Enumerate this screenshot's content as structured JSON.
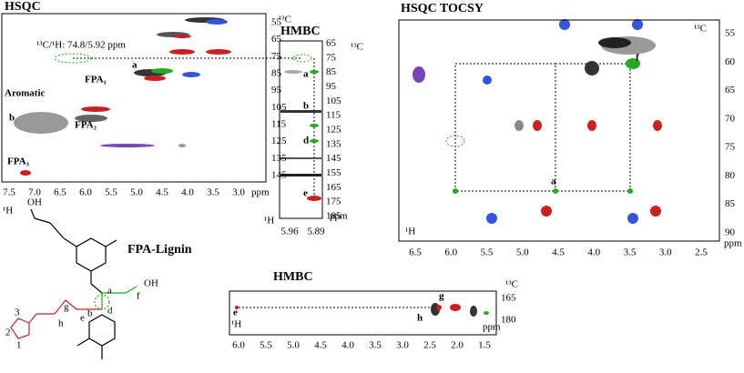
{
  "panels": [
    {
      "title": "HSQC",
      "y_axis_label": "¹³C",
      "x_axis_label": "¹H",
      "x_unit": "ppm",
      "yticks": [
        55,
        65,
        75,
        85,
        95,
        105,
        115,
        125,
        135,
        145
      ],
      "xticks": [
        "7.5",
        "7.0",
        "6.5",
        "6.0",
        "5.5",
        "5.0",
        "4.5",
        "4.0",
        "3.5",
        "3.0"
      ],
      "annotations": [
        "¹³C/¹H: 74.8/5.92 ppm",
        "a",
        "Aromatic",
        "FPA₁",
        "b",
        "FPA₂",
        "FPA₃"
      ]
    },
    {
      "title": "HMBC",
      "y_axis_label": "¹³C",
      "x_axis_label": "¹H",
      "x_unit": "ppm",
      "yticks": [
        65,
        75,
        85,
        95,
        105,
        115,
        125,
        135,
        145,
        155,
        165,
        175,
        185
      ],
      "xticks": [
        "5.96",
        "5.89"
      ],
      "annotations": [
        "a",
        "b",
        "d",
        "e"
      ]
    },
    {
      "title": "HSQC TOCSY",
      "y_axis_label": "¹³C",
      "x_axis_label": "¹H",
      "x_unit": "ppm",
      "yticks": [
        55,
        60,
        65,
        70,
        75,
        80,
        85,
        90
      ],
      "xticks": [
        "6.5",
        "6.0",
        "5.5",
        "5.0",
        "4.5",
        "4.0",
        "3.5",
        "3.0",
        "2.5"
      ],
      "annotations": [
        "f",
        "a"
      ]
    },
    {
      "title": "HMBC",
      "y_axis_label": "¹³C",
      "x_axis_label": "¹H",
      "x_unit": "ppm",
      "yticks": [
        165,
        180
      ],
      "xticks": [
        "6.0",
        "5.5",
        "5.0",
        "4.5",
        "4.0",
        "3.5",
        "3.0",
        "2.5",
        "2.0",
        "1.5"
      ],
      "annotations": [
        "e",
        "h",
        "g"
      ]
    }
  ],
  "structure": {
    "name": "FPA-Lignin",
    "labels": [
      "OH",
      "a",
      "f",
      "OH",
      "e",
      "g",
      "h",
      "d",
      "b",
      "1",
      "2",
      "3"
    ]
  }
}
